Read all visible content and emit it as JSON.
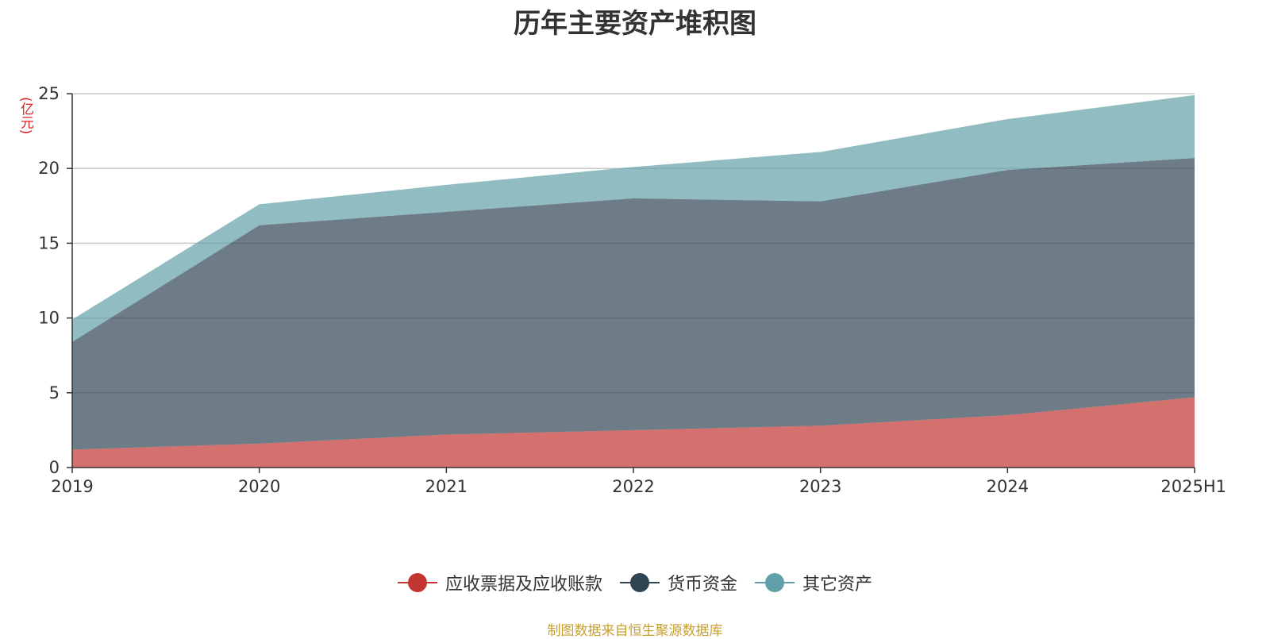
{
  "chart_data": {
    "type": "area",
    "stacked": true,
    "title": "历年主要资产堆积图",
    "ylabel": "(亿元)",
    "categories": [
      "2019",
      "2020",
      "2021",
      "2022",
      "2023",
      "2024",
      "2025H1"
    ],
    "yticks": [
      "0",
      "5",
      "10",
      "15",
      "20",
      "25"
    ],
    "ylim": [
      0,
      25
    ],
    "grid": true,
    "legend_position": "bottom",
    "series": [
      {
        "name": "应收票据及应收账款",
        "color": "#c23531",
        "values": [
          1.2,
          1.6,
          2.2,
          2.5,
          2.8,
          3.5,
          4.7
        ]
      },
      {
        "name": "货币资金",
        "color": "#2f4554",
        "values": [
          7.2,
          14.6,
          14.9,
          15.5,
          15.0,
          16.4,
          16.0
        ]
      },
      {
        "name": "其它资产",
        "color": "#61a0a8",
        "values": [
          1.5,
          1.4,
          1.8,
          2.1,
          3.3,
          3.4,
          4.2
        ]
      }
    ]
  },
  "source_note": "制图数据来自恒生聚源数据库"
}
